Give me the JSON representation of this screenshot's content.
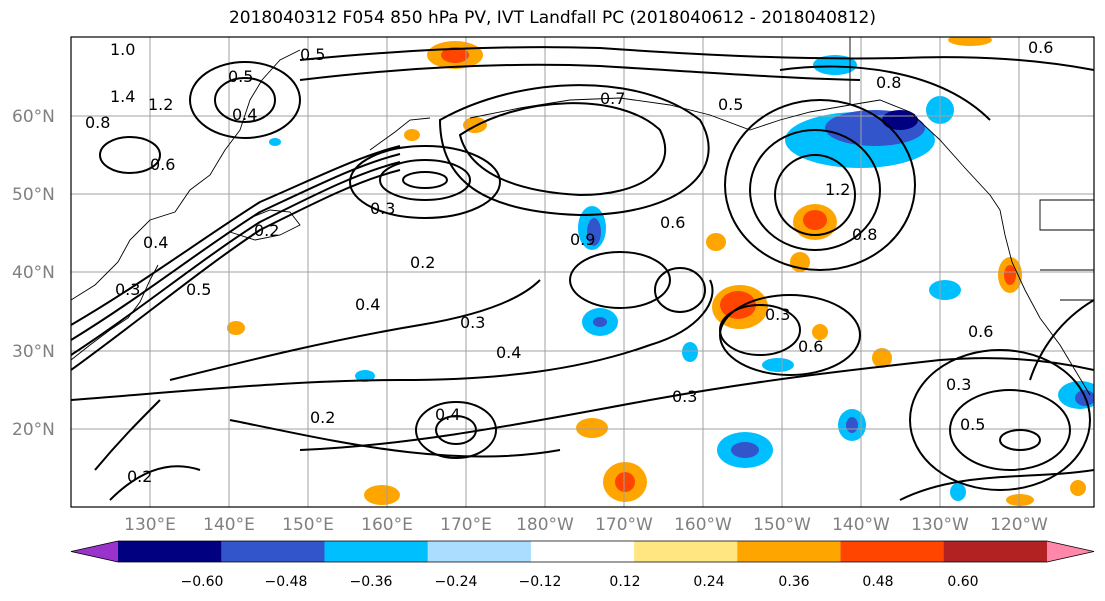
{
  "title": "2018040312 F054 850 hPa PV, IVT Landfall PC (2018040612 - 2018040812)",
  "lat_labels": [
    "60°N",
    "50°N",
    "40°N",
    "30°N",
    "20°N"
  ],
  "lon_labels": [
    "130°E",
    "140°E",
    "150°E",
    "160°E",
    "170°E",
    "180°W",
    "170°W",
    "160°W",
    "150°W",
    "140°W",
    "130°W",
    "120°W"
  ],
  "colorbar": {
    "colors": [
      "#9933cc",
      "#000080",
      "#3355cc",
      "#00bfff",
      "#aaddff",
      "#ffffff",
      "#ffe680",
      "#ffa500",
      "#ff4500",
      "#b22222",
      "#ff88aa"
    ],
    "ticks": [
      "−0.60",
      "−0.48",
      "−0.36",
      "−0.24",
      "−0.12",
      "0.12",
      "0.24",
      "0.36",
      "0.48",
      "0.60"
    ]
  },
  "contour_labels": [
    "1.0",
    "0.8",
    "0.4",
    "0.5",
    "1.2",
    "1.4",
    "0.6",
    "0.2",
    "0.3",
    "0.4",
    "0.3",
    "0.4",
    "0.2",
    "0.2",
    "0.4",
    "0.5",
    "0.3",
    "0.6",
    "0.8",
    "1.2",
    "0.8",
    "0.3",
    "0.6",
    "0.3",
    "0.5",
    "0.6",
    "0.2",
    "0.3",
    "0.4",
    "0.9",
    "0.5",
    "0.7",
    "0.5",
    "0.6"
  ]
}
